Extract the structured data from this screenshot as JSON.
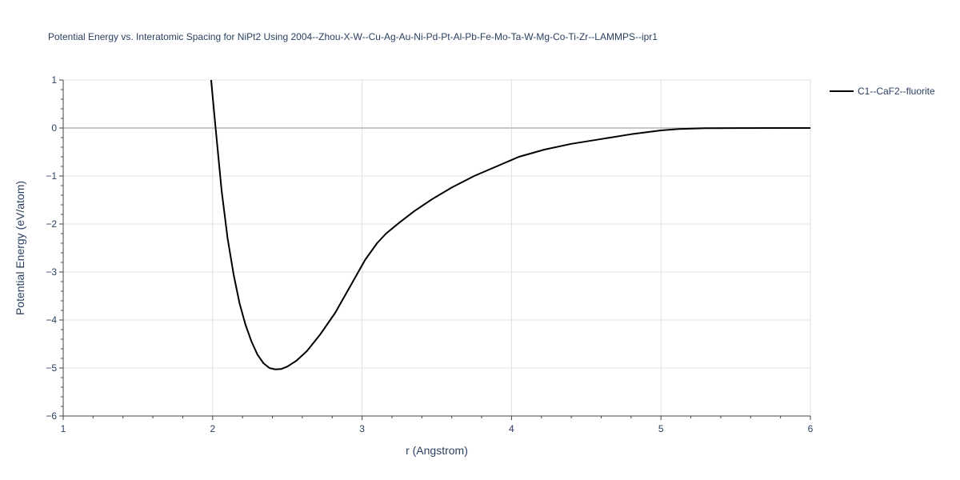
{
  "chart_data": {
    "type": "line",
    "title": "Potential Energy vs. Interatomic Spacing for NiPt2 Using 2004--Zhou-X-W--Cu-Ag-Au-Ni-Pd-Pt-Al-Pb-Fe-Mo-Ta-W-Mg-Co-Ti-Zr--LAMMPS--ipr1",
    "xlabel": "r (Angstrom)",
    "ylabel": "Potential Energy (eV/atom)",
    "xlim": [
      1,
      6
    ],
    "ylim": [
      -6,
      1
    ],
    "xticks": [
      1,
      2,
      3,
      4,
      5,
      6
    ],
    "yticks": [
      1,
      0,
      -1,
      -2,
      -3,
      -4,
      -5,
      -6
    ],
    "xtick_labels": [
      "1",
      "2",
      "3",
      "4",
      "5",
      "6"
    ],
    "ytick_labels": [
      "1",
      "0",
      "−1",
      "−2",
      "−3",
      "−4",
      "−5",
      "−6"
    ],
    "grid": true,
    "legend_position": "top-right",
    "series": [
      {
        "name": "C1--CaF2--fluorite",
        "color": "#000000",
        "x": [
          1.99,
          2.02,
          2.06,
          2.1,
          2.14,
          2.18,
          2.22,
          2.26,
          2.3,
          2.34,
          2.38,
          2.42,
          2.46,
          2.5,
          2.56,
          2.63,
          2.72,
          2.82,
          2.92,
          3.02,
          3.1,
          3.16,
          3.25,
          3.35,
          3.47,
          3.6,
          3.75,
          3.9,
          4.05,
          4.22,
          4.4,
          4.6,
          4.8,
          5.0,
          5.12,
          5.3,
          5.5,
          5.8,
          6.0
        ],
        "y": [
          1.0,
          0.0,
          -1.3,
          -2.3,
          -3.05,
          -3.65,
          -4.1,
          -4.45,
          -4.72,
          -4.9,
          -5.0,
          -5.03,
          -5.02,
          -4.97,
          -4.85,
          -4.65,
          -4.3,
          -3.85,
          -3.3,
          -2.75,
          -2.4,
          -2.2,
          -1.97,
          -1.73,
          -1.48,
          -1.24,
          -1.0,
          -0.8,
          -0.6,
          -0.45,
          -0.33,
          -0.23,
          -0.13,
          -0.05,
          -0.02,
          -0.005,
          -0.001,
          0.0,
          0.0
        ]
      }
    ]
  }
}
